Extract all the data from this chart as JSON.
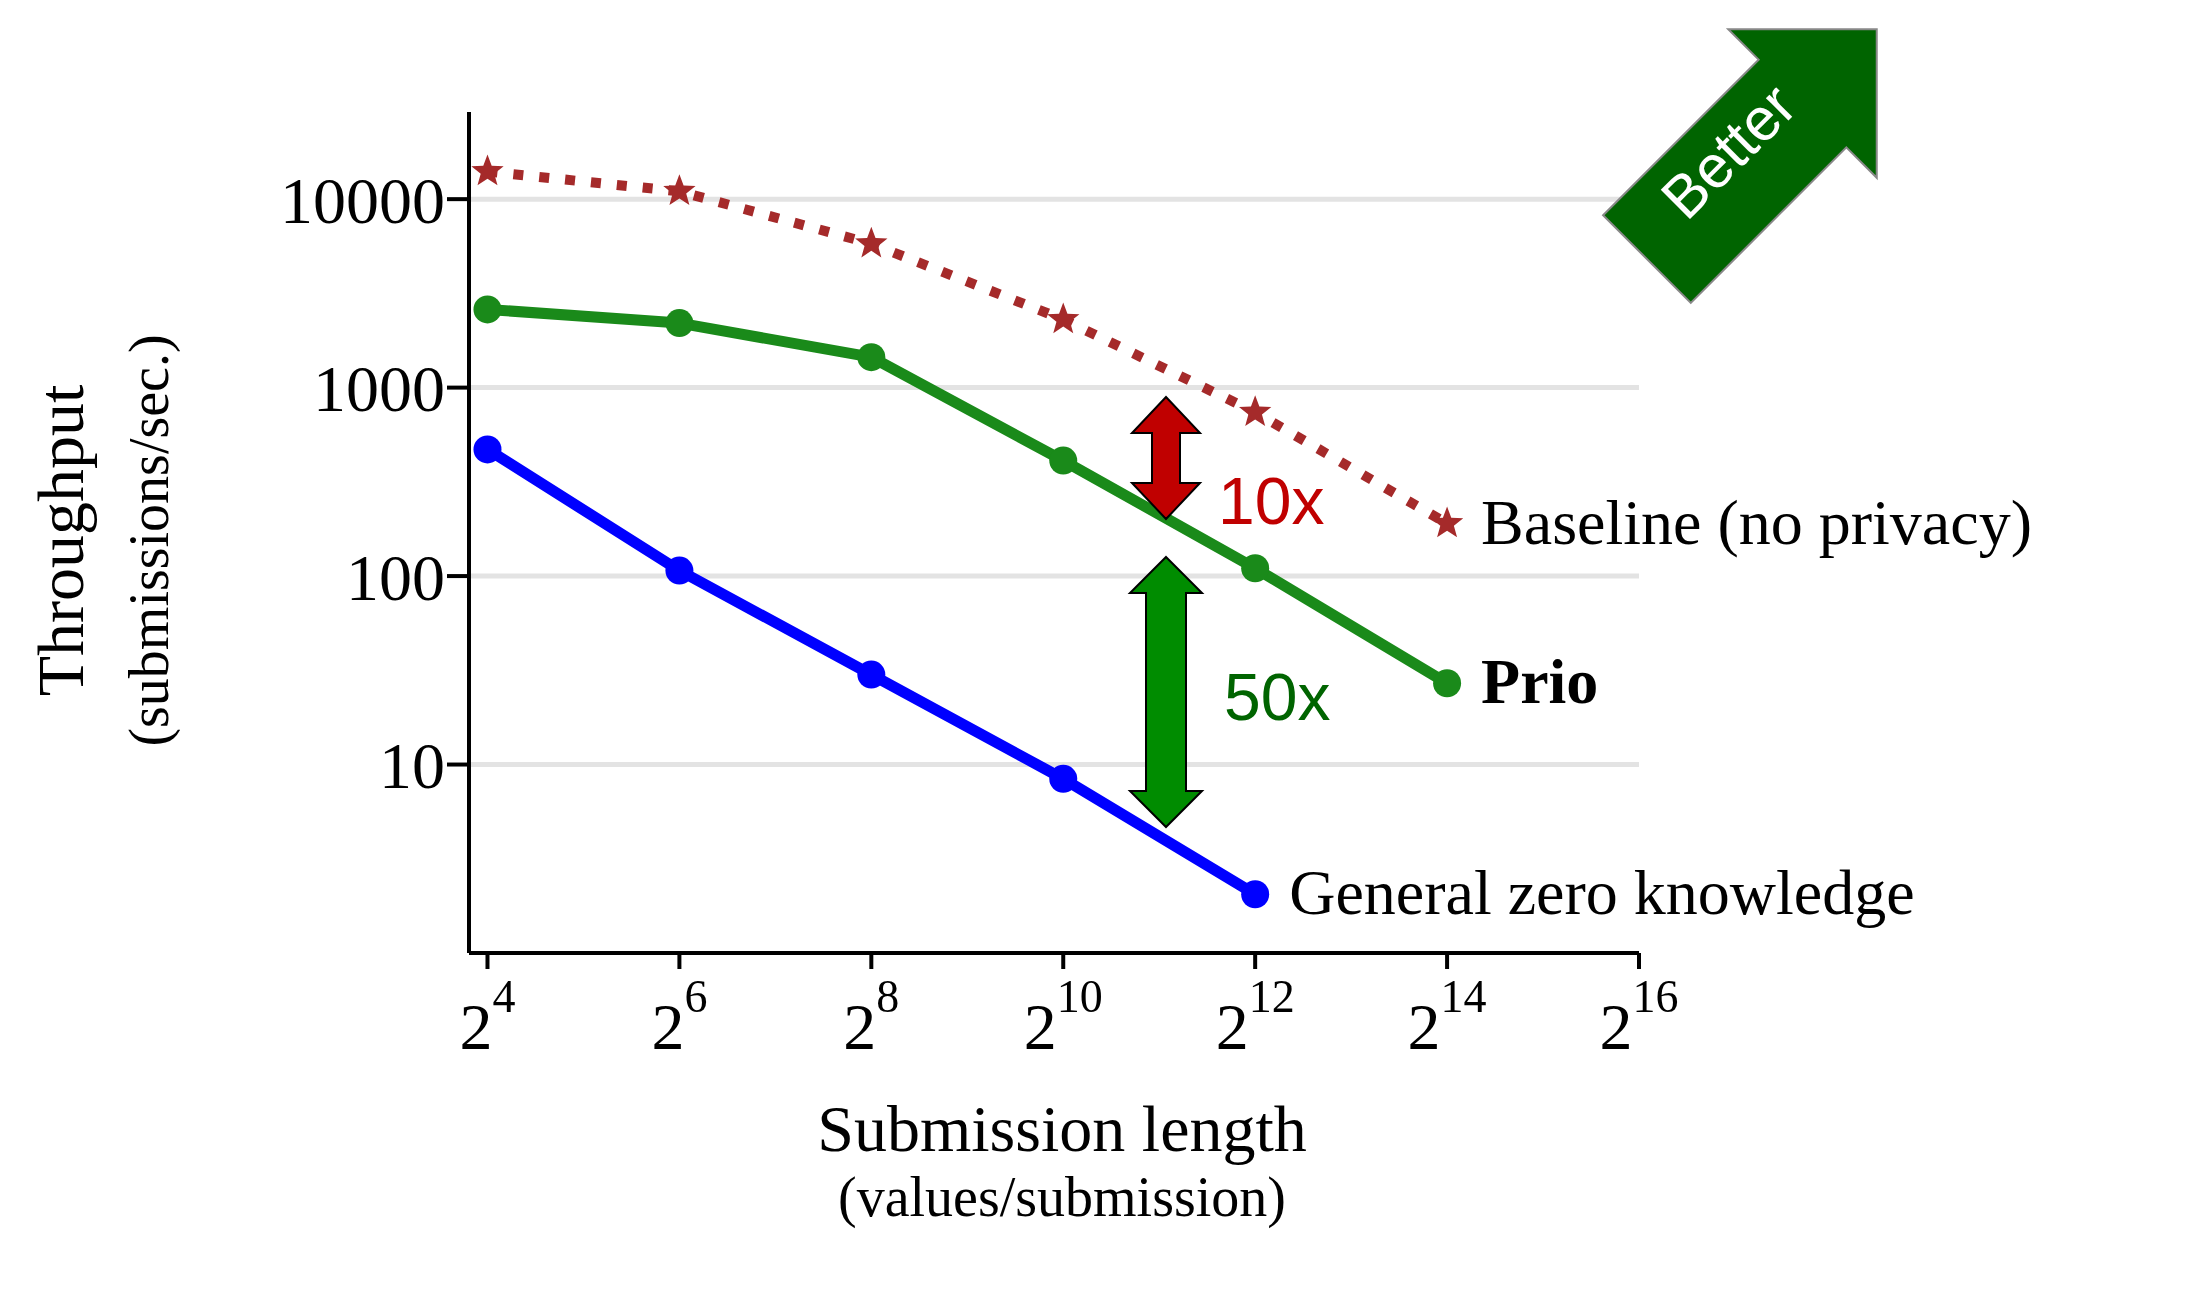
{
  "chart_data": {
    "type": "line",
    "xlabel": "Submission length\n(values/submission)",
    "ylabel": "Throughput\n(submissions/sec.)",
    "x": [
      16,
      64,
      256,
      1024,
      4096,
      16384
    ],
    "series": [
      {
        "name": "Baseline (no privacy)",
        "color": "#a52a2a",
        "marker": "star",
        "line_style": "dotted",
        "values": [
          14000,
          11000,
          5800,
          2300,
          740,
          190
        ]
      },
      {
        "name": "Prio",
        "color": "#1a8a1a",
        "marker": "circle",
        "line_style": "solid",
        "values": [
          2600,
          2200,
          1450,
          410,
          110,
          27
        ]
      },
      {
        "name": "General zero knowledge",
        "color": "#0000ff",
        "marker": "circle",
        "line_style": "solid",
        "values": [
          470,
          107,
          30,
          8.4,
          2.05,
          null
        ]
      }
    ],
    "log": "xy",
    "xlim": [
      14,
      65536
    ],
    "xticks": [
      {
        "value": 16,
        "label": "2$^{4}$"
      },
      {
        "value": 64,
        "label": "2$^{6}$"
      },
      {
        "value": 256,
        "label": "2$^{8}$"
      },
      {
        "value": 1024,
        "label": "2$^{10}$"
      },
      {
        "value": 4096,
        "label": "2$^{12}$"
      },
      {
        "value": 16384,
        "label": "2$^{14}$"
      },
      {
        "value": 65536,
        "label": "2$^{16}$"
      }
    ],
    "ylim": [
      1,
      29000
    ],
    "yticks": [
      10,
      100,
      1000,
      10000
    ],
    "grid": "y",
    "legend": false,
    "annotations": [
      "10x",
      "50x",
      "Better"
    ]
  }
}
